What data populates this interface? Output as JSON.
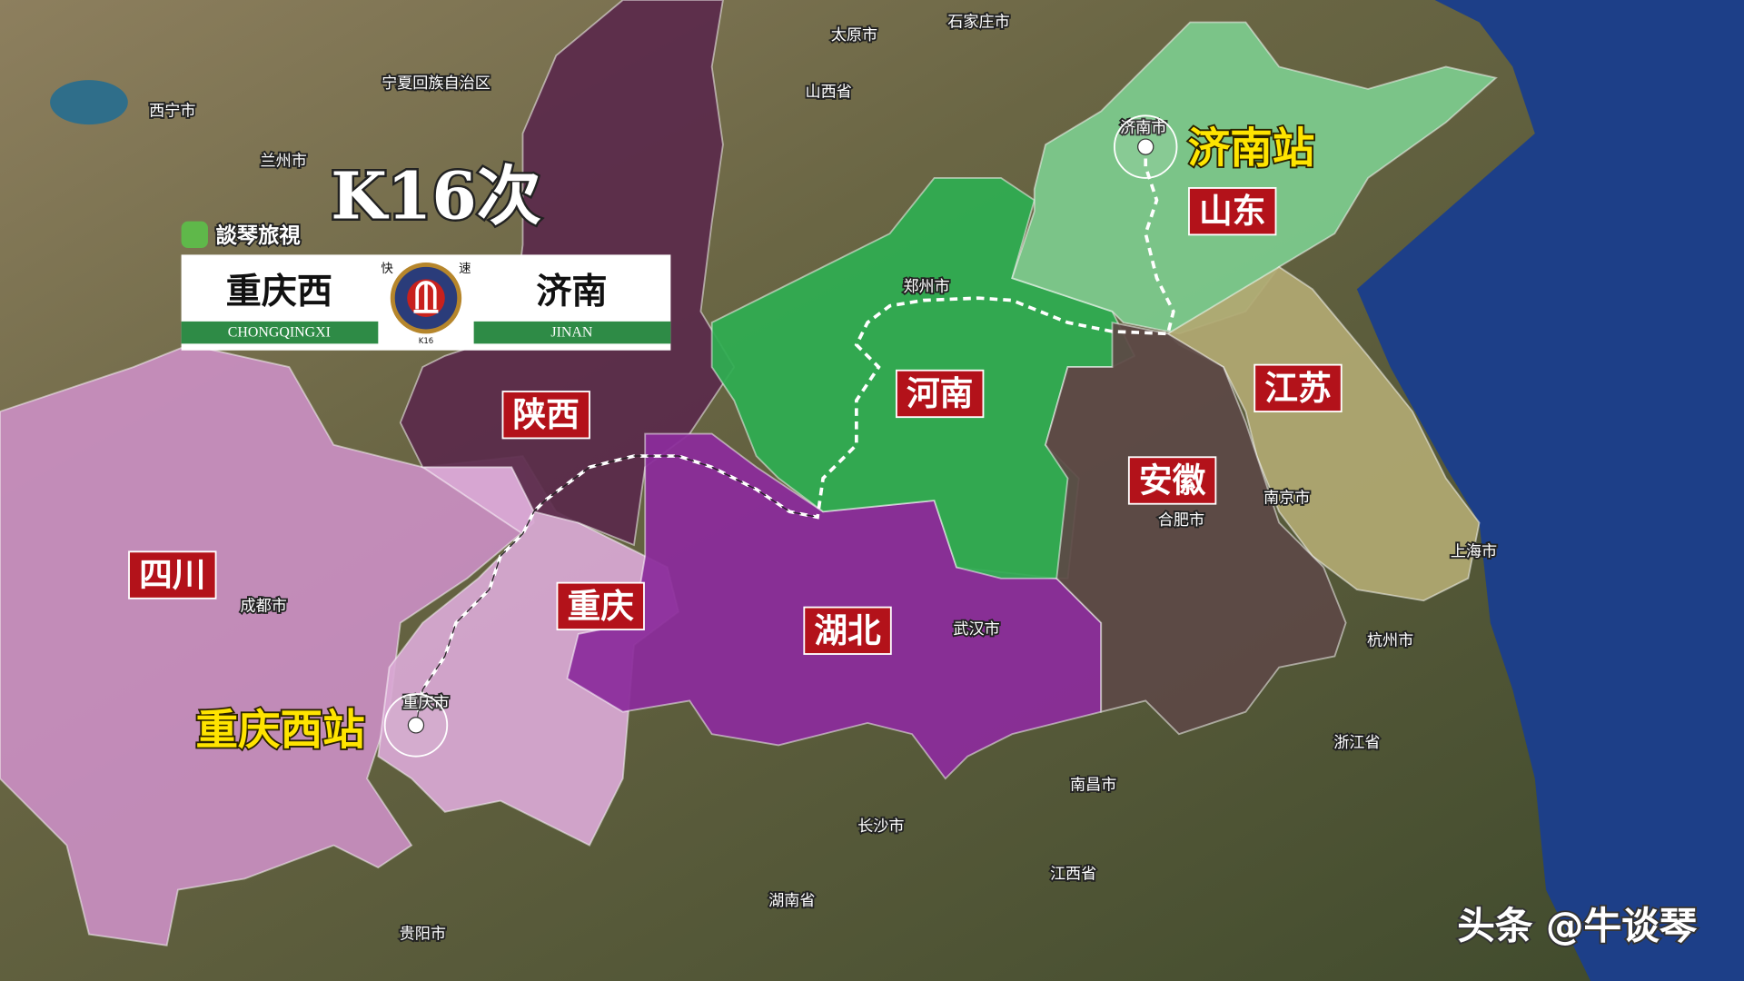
{
  "title": "K16次",
  "logo": "談琴旅視",
  "sign": {
    "origin": "重庆西",
    "origin_pinyin": "CHONGQINGXI",
    "badge_left": "快",
    "badge_right": "速",
    "badge_code": "K16",
    "destination": "济南",
    "destination_pinyin": "JINAN"
  },
  "stations": {
    "destination": "济南站",
    "origin": "重庆西站"
  },
  "provinces": [
    {
      "label": "山东"
    },
    {
      "label": "河南"
    },
    {
      "label": "江苏"
    },
    {
      "label": "安徽"
    },
    {
      "label": "陕西"
    },
    {
      "label": "四川"
    },
    {
      "label": "重庆"
    },
    {
      "label": "湖北"
    }
  ],
  "places": [
    {
      "label": "太原市"
    },
    {
      "label": "石家庄市"
    },
    {
      "label": "山西省"
    },
    {
      "label": "宁夏回族自治区"
    },
    {
      "label": "西宁市"
    },
    {
      "label": "兰州市"
    },
    {
      "label": "郑州市"
    },
    {
      "label": "济南市"
    },
    {
      "label": "南京市"
    },
    {
      "label": "合肥市"
    },
    {
      "label": "上海市"
    },
    {
      "label": "杭州市"
    },
    {
      "label": "浙江省"
    },
    {
      "label": "武汉市"
    },
    {
      "label": "成都市"
    },
    {
      "label": "重庆市"
    },
    {
      "label": "南昌市"
    },
    {
      "label": "长沙市"
    },
    {
      "label": "江西省"
    },
    {
      "label": "湖南省"
    },
    {
      "label": "贵阳市"
    }
  ],
  "watermark": "头条 @牛谈琴"
}
